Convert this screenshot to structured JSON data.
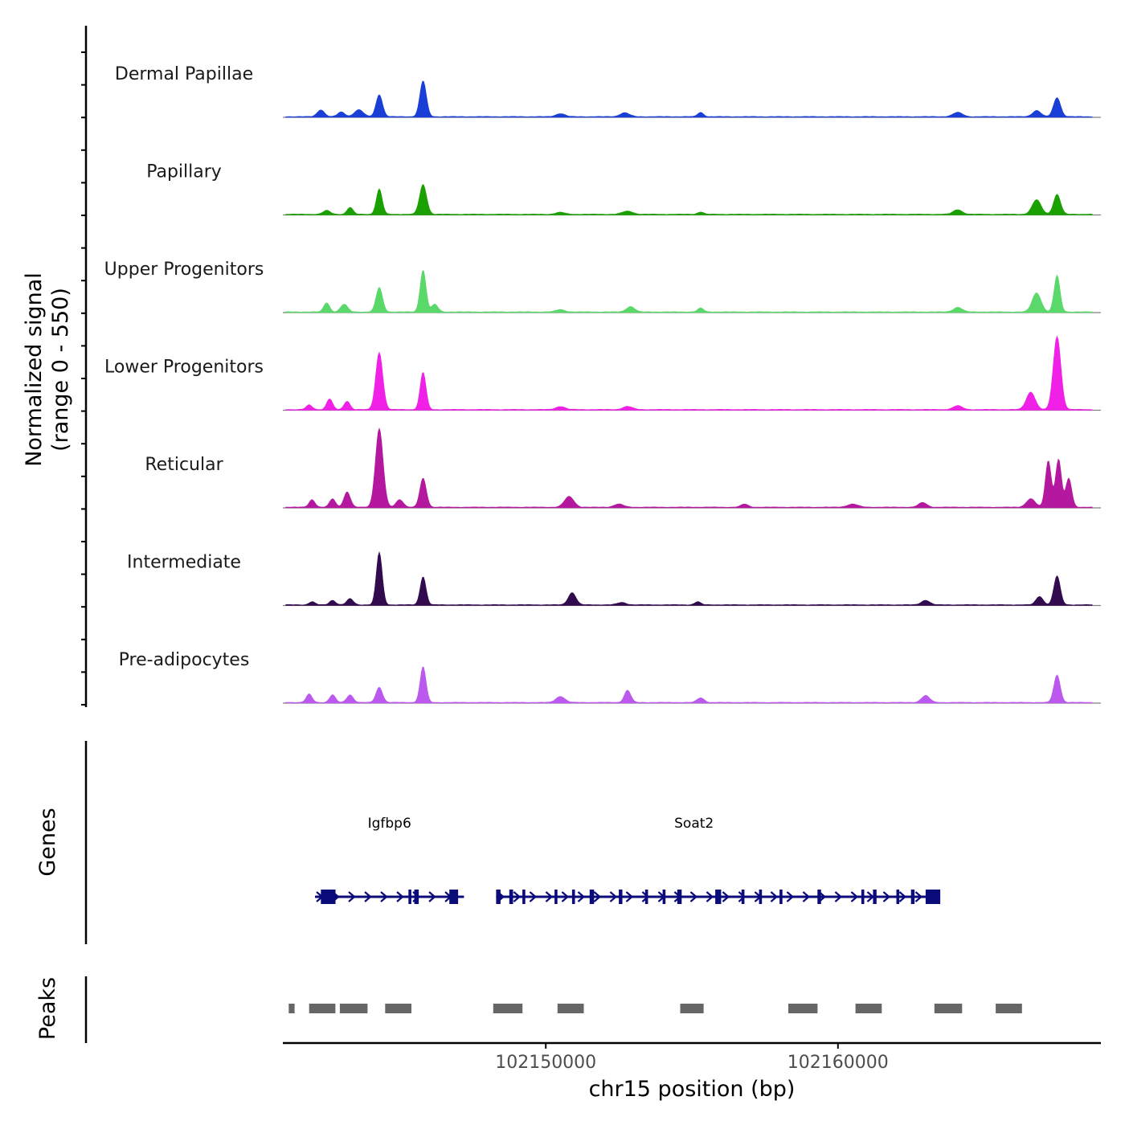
{
  "chart_data": {
    "type": "area",
    "title": "",
    "chromosome": "chr15",
    "xlabel": "chr15 position (bp)",
    "xlim": [
      102141000,
      102169000
    ],
    "x_ticks": [
      102150000,
      102160000
    ],
    "x_tick_labels": [
      "102150000",
      "102160000"
    ],
    "ylabel_line1": "Normalized signal",
    "ylabel_line2": "(range 0 - 550)",
    "ylim": [
      0,
      550
    ],
    "series": [
      {
        "name": "Dermal Papillae",
        "color": "#1a3fd6",
        "peaks": [
          [
            102142300,
            90,
            120
          ],
          [
            102143000,
            60,
            120
          ],
          [
            102143600,
            90,
            150
          ],
          [
            102144300,
            290,
            110
          ],
          [
            102145800,
            470,
            110
          ],
          [
            102150500,
            40,
            150
          ],
          [
            102152700,
            50,
            160
          ],
          [
            102155300,
            55,
            100
          ],
          [
            102164100,
            55,
            160
          ],
          [
            102166800,
            80,
            140
          ],
          [
            102167500,
            250,
            120
          ]
        ]
      },
      {
        "name": "Papillary",
        "color": "#1aa000",
        "peaks": [
          [
            102142500,
            50,
            120
          ],
          [
            102143300,
            90,
            100
          ],
          [
            102144300,
            330,
            100
          ],
          [
            102145800,
            390,
            120
          ],
          [
            102150500,
            25,
            150
          ],
          [
            102152800,
            40,
            180
          ],
          [
            102155300,
            30,
            100
          ],
          [
            102164100,
            60,
            150
          ],
          [
            102166800,
            190,
            150
          ],
          [
            102167500,
            260,
            120
          ]
        ]
      },
      {
        "name": "Upper Progenitors",
        "color": "#5ad86a",
        "peaks": [
          [
            102142500,
            120,
            100
          ],
          [
            102143100,
            100,
            120
          ],
          [
            102144300,
            320,
            110
          ],
          [
            102145800,
            550,
            100
          ],
          [
            102146200,
            100,
            110
          ],
          [
            102150500,
            30,
            150
          ],
          [
            102152900,
            70,
            140
          ],
          [
            102155300,
            50,
            100
          ],
          [
            102164100,
            60,
            150
          ],
          [
            102166800,
            250,
            150
          ],
          [
            102167500,
            480,
            100
          ]
        ]
      },
      {
        "name": "Lower Progenitors",
        "color": "#f020e6",
        "peaks": [
          [
            102141900,
            60,
            100
          ],
          [
            102142600,
            140,
            100
          ],
          [
            102143200,
            110,
            100
          ],
          [
            102144300,
            750,
            120
          ],
          [
            102145800,
            490,
            100
          ],
          [
            102150500,
            40,
            150
          ],
          [
            102152800,
            40,
            160
          ],
          [
            102164100,
            50,
            150
          ],
          [
            102166600,
            230,
            150
          ],
          [
            102167500,
            960,
            130
          ]
        ]
      },
      {
        "name": "Reticular",
        "color": "#b4189e",
        "peaks": [
          [
            102142000,
            100,
            100
          ],
          [
            102142700,
            110,
            100
          ],
          [
            102143200,
            200,
            110
          ],
          [
            102144300,
            1030,
            130
          ],
          [
            102145000,
            100,
            120
          ],
          [
            102145800,
            380,
            110
          ],
          [
            102150800,
            140,
            160
          ],
          [
            102152500,
            40,
            160
          ],
          [
            102156800,
            40,
            120
          ],
          [
            102160500,
            40,
            180
          ],
          [
            102162900,
            60,
            140
          ],
          [
            102166600,
            110,
            150
          ],
          [
            102167200,
            610,
            100
          ],
          [
            102167550,
            630,
            100
          ],
          [
            102167900,
            380,
            100
          ]
        ]
      },
      {
        "name": "Intermediate",
        "color": "#320a4e",
        "peaks": [
          [
            102142000,
            40,
            100
          ],
          [
            102142700,
            60,
            100
          ],
          [
            102143300,
            80,
            110
          ],
          [
            102144300,
            690,
            100
          ],
          [
            102145800,
            370,
            100
          ],
          [
            102150900,
            160,
            130
          ],
          [
            102152600,
            30,
            150
          ],
          [
            102155200,
            40,
            100
          ],
          [
            102163000,
            60,
            140
          ],
          [
            102166900,
            110,
            120
          ],
          [
            102167500,
            380,
            110
          ]
        ]
      },
      {
        "name": "Pre-adipocytes",
        "color": "#bb58ee",
        "peaks": [
          [
            102141900,
            110,
            100
          ],
          [
            102142700,
            100,
            100
          ],
          [
            102143300,
            100,
            110
          ],
          [
            102144300,
            200,
            110
          ],
          [
            102145800,
            470,
            100
          ],
          [
            102150500,
            80,
            150
          ],
          [
            102152800,
            160,
            110
          ],
          [
            102155300,
            60,
            120
          ],
          [
            102163000,
            90,
            140
          ],
          [
            102167500,
            360,
            110
          ]
        ]
      }
    ],
    "genes_track_label": "Genes",
    "genes": [
      {
        "name": "Igfbp6",
        "start": 102142100,
        "end": 102147200,
        "strand": "+",
        "color": "#0b0b7a",
        "exons": [
          [
            102142300,
            102142800
          ],
          [
            102145300,
            102145400
          ],
          [
            102145500,
            102145650
          ],
          [
            102146700,
            102147000
          ]
        ]
      },
      {
        "name": "Soat2",
        "start": 102148300,
        "end": 102163500,
        "strand": "+",
        "color": "#0b0b7a",
        "exons": [
          [
            102148300,
            102148450
          ],
          [
            102148750,
            102148880
          ],
          [
            102149200,
            102149300
          ],
          [
            102150300,
            102150400
          ],
          [
            102150900,
            102151000
          ],
          [
            102151500,
            102151650
          ],
          [
            102152500,
            102152620
          ],
          [
            102153400,
            102153500
          ],
          [
            102154000,
            102154100
          ],
          [
            102154500,
            102154650
          ],
          [
            102155800,
            102156000
          ],
          [
            102156700,
            102156800
          ],
          [
            102157300,
            102157400
          ],
          [
            102158000,
            102158100
          ],
          [
            102159300,
            102159420
          ],
          [
            102160800,
            102160900
          ],
          [
            102161200,
            102161320
          ],
          [
            102162000,
            102162100
          ],
          [
            102162500,
            102162620
          ],
          [
            102163000,
            102163500
          ]
        ]
      }
    ],
    "peaks_track_label": "Peaks",
    "peaks": [
      [
        102141200,
        102141400
      ],
      [
        102141900,
        102142800
      ],
      [
        102142950,
        102143900
      ],
      [
        102144500,
        102145400
      ],
      [
        102148200,
        102149200
      ],
      [
        102150400,
        102151300
      ],
      [
        102154600,
        102155400
      ],
      [
        102158300,
        102159300
      ],
      [
        102160600,
        102161500
      ],
      [
        102163300,
        102164250
      ],
      [
        102165400,
        102166300
      ]
    ]
  }
}
